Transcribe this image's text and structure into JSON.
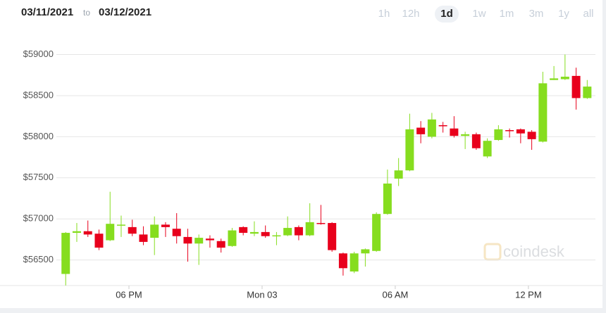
{
  "header": {
    "from_date": "03/11/2021",
    "separator": "to",
    "to_date": "03/12/2021",
    "range_buttons": [
      "1h",
      "12h",
      "1d",
      "1w",
      "1m",
      "3m",
      "1y",
      "all"
    ],
    "selected_range": "1d"
  },
  "watermark": "coindesk",
  "chart_data": {
    "type": "candlestick",
    "x": [
      15.15,
      15.65,
      16.15,
      16.65,
      17.15,
      17.65,
      18.15,
      18.65,
      19.15,
      19.65,
      20.15,
      20.65,
      21.15,
      21.65,
      22.15,
      22.65,
      23.15,
      23.65,
      24.15,
      24.65,
      25.15,
      25.65,
      26.15,
      26.65,
      27.15,
      27.65,
      28.15,
      28.65,
      29.15,
      29.65,
      30.15,
      30.65,
      31.15,
      31.65,
      32.15,
      32.65,
      33.15,
      33.65,
      34.15,
      34.65,
      35.15,
      35.65,
      36.15,
      36.65,
      37.15,
      37.65,
      38.15,
      38.65
    ],
    "open": [
      56330,
      56830,
      56850,
      56820,
      56740,
      56920,
      56900,
      56810,
      56770,
      56930,
      56880,
      56780,
      56700,
      56760,
      56730,
      56670,
      56900,
      56820,
      56840,
      56790,
      56800,
      56900,
      56800,
      56950,
      56950,
      56580,
      56360,
      56580,
      56610,
      57060,
      57490,
      57590,
      58110,
      58000,
      58140,
      58100,
      58010,
      58030,
      57760,
      57960,
      58080,
      58090,
      58060,
      57940,
      58690,
      58700,
      58740,
      58470
    ],
    "high": [
      56840,
      56950,
      56980,
      56870,
      57330,
      57040,
      56990,
      56910,
      57030,
      56960,
      57070,
      56880,
      56810,
      56800,
      56760,
      56890,
      56910,
      56970,
      56920,
      56840,
      57030,
      56920,
      57190,
      57170,
      56960,
      56590,
      56600,
      56640,
      57080,
      57600,
      57740,
      58280,
      58190,
      58290,
      58180,
      58250,
      58060,
      58050,
      57980,
      58140,
      58100,
      58100,
      58080,
      58790,
      58860,
      59000,
      58840,
      58690
    ],
    "low": [
      56190,
      56720,
      56780,
      56620,
      56730,
      56780,
      56790,
      56680,
      56560,
      56780,
      56700,
      56480,
      56440,
      56650,
      56590,
      56660,
      56800,
      56790,
      56770,
      56680,
      56790,
      56740,
      56790,
      56930,
      56600,
      56310,
      56340,
      56420,
      56600,
      57050,
      57400,
      57580,
      57920,
      57980,
      58050,
      57990,
      57850,
      57840,
      57740,
      57950,
      57990,
      57920,
      57840,
      57930,
      58690,
      58690,
      58330,
      58460
    ],
    "close": [
      56830,
      56850,
      56810,
      56650,
      56940,
      56930,
      56820,
      56720,
      56930,
      56900,
      56790,
      56700,
      56770,
      56740,
      56650,
      56860,
      56830,
      56840,
      56790,
      56800,
      56890,
      56800,
      56960,
      56940,
      56620,
      56400,
      56580,
      56630,
      57060,
      57430,
      57590,
      58090,
      58030,
      58210,
      58130,
      58010,
      58030,
      57860,
      57950,
      58090,
      58070,
      58040,
      57970,
      58650,
      58710,
      58730,
      58470,
      58610
    ],
    "up_color": "#86dd1f",
    "down_color": "#e8001c",
    "ylim": [
      56180,
      59150
    ],
    "yticks": [
      {
        "value": 56500,
        "label": "$56500"
      },
      {
        "value": 57000,
        "label": "$57000"
      },
      {
        "value": 57500,
        "label": "$57500"
      },
      {
        "value": 58000,
        "label": "$58000"
      },
      {
        "value": 58500,
        "label": "$58500"
      },
      {
        "value": 59000,
        "label": "$59000"
      }
    ],
    "xlim": [
      14.73,
      39.02
    ],
    "xticks": [
      {
        "value": 18,
        "label": "06 PM"
      },
      {
        "value": 24,
        "label": "Mon 03"
      },
      {
        "value": 30,
        "label": "06 AM"
      },
      {
        "value": 36,
        "label": "12 PM"
      }
    ],
    "grid": true
  }
}
